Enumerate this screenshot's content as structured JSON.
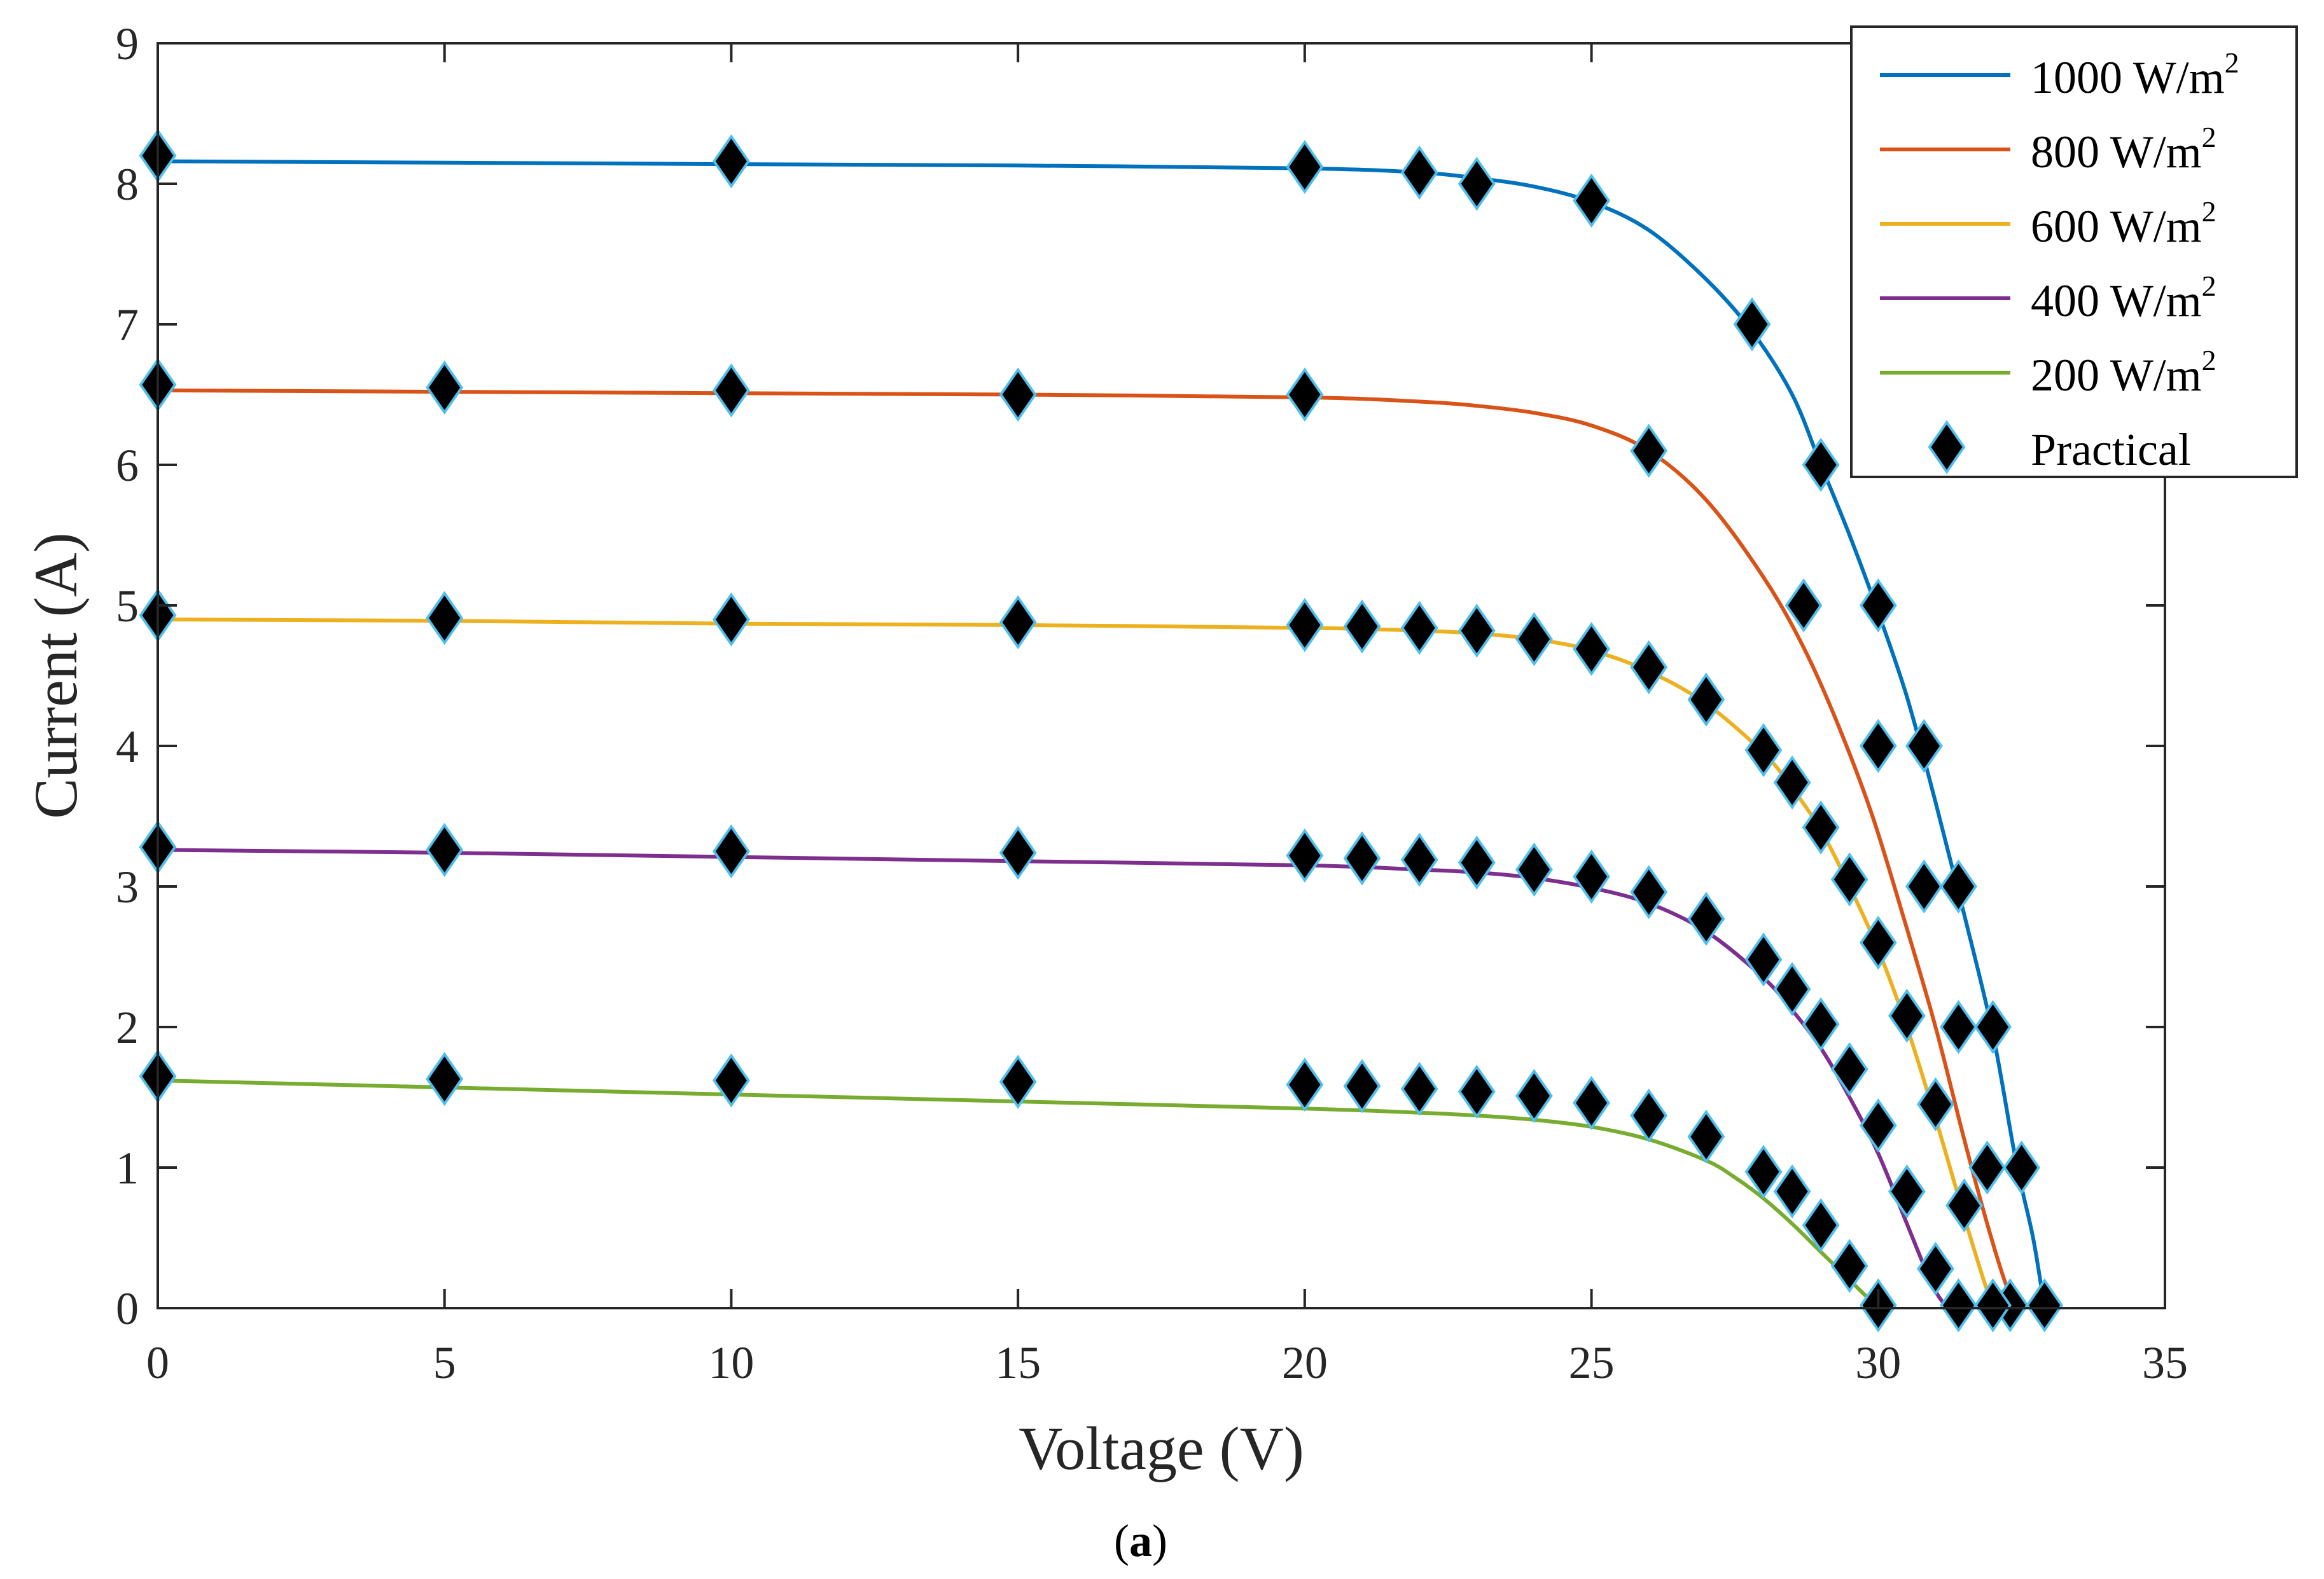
{
  "chart_data": {
    "type": "line",
    "title": "",
    "xlabel": "Voltage (V)",
    "ylabel": "Current (A)",
    "xlim": [
      0,
      35
    ],
    "ylim": [
      0,
      9
    ],
    "xticks": [
      "0",
      "5",
      "10",
      "15",
      "20",
      "25",
      "30",
      "35"
    ],
    "yticks": [
      "0",
      "1",
      "2",
      "3",
      "4",
      "5",
      "6",
      "7",
      "8",
      "9"
    ],
    "grid": false,
    "legend_position": "top-right",
    "caption": {
      "open": "(",
      "letter": "a",
      "close": ")"
    },
    "series": [
      {
        "name": "1000 W/m2",
        "label_text": "1000 W/m",
        "label_sup": "2",
        "color": "#0072BD",
        "x": [
          0,
          5,
          10,
          15,
          20,
          22,
          23,
          24,
          25,
          26,
          27,
          27.8,
          28.5,
          29,
          29.5,
          30,
          30.5,
          31,
          31.5,
          32,
          32.4,
          32.7,
          32.9
        ],
        "y": [
          8.16,
          8.15,
          8.14,
          8.13,
          8.11,
          8.08,
          8.04,
          7.98,
          7.87,
          7.67,
          7.32,
          6.95,
          6.5,
          6.0,
          5.5,
          4.95,
          4.35,
          3.6,
          2.8,
          1.95,
          1.05,
          0.5,
          0.0
        ]
      },
      {
        "name": "800 W/m2",
        "label_text": "800 W/m",
        "label_sup": "2",
        "color": "#D95319",
        "x": [
          0,
          5,
          10,
          15,
          20,
          22,
          23,
          24,
          25,
          26,
          27,
          28,
          28.7,
          29.3,
          29.9,
          30.5,
          31,
          31.5,
          31.9,
          32.2,
          32.4
        ],
        "y": [
          6.53,
          6.52,
          6.51,
          6.5,
          6.48,
          6.45,
          6.42,
          6.37,
          6.28,
          6.1,
          5.75,
          5.2,
          4.7,
          4.15,
          3.5,
          2.7,
          2.0,
          1.2,
          0.6,
          0.2,
          0.0
        ]
      },
      {
        "name": "600 W/m2",
        "label_text": "600 W/m",
        "label_sup": "2",
        "color": "#EDB120",
        "x": [
          0,
          5,
          10,
          15,
          20,
          22,
          23,
          24,
          25,
          26,
          27,
          28,
          28.5,
          29,
          29.5,
          30,
          30.5,
          31,
          31.5,
          31.8,
          32
        ],
        "y": [
          4.9,
          4.89,
          4.87,
          4.86,
          4.84,
          4.82,
          4.8,
          4.76,
          4.68,
          4.53,
          4.3,
          3.95,
          3.7,
          3.4,
          3.0,
          2.55,
          2.0,
          1.35,
          0.65,
          0.25,
          0.0
        ]
      },
      {
        "name": "400 W/m2",
        "label_text": "400 W/m",
        "label_sup": "2",
        "color": "#7E2F8E",
        "x": [
          0,
          5,
          10,
          15,
          20,
          22,
          23,
          24,
          25,
          26,
          27,
          28,
          28.5,
          29,
          29.5,
          30,
          30.5,
          30.8,
          31,
          31.2
        ],
        "y": [
          3.26,
          3.24,
          3.21,
          3.18,
          3.15,
          3.12,
          3.1,
          3.06,
          2.99,
          2.88,
          2.68,
          2.35,
          2.12,
          1.85,
          1.5,
          1.1,
          0.6,
          0.3,
          0.12,
          0.0
        ]
      },
      {
        "name": "200 W/m2",
        "label_text": "200 W/m",
        "label_sup": "2",
        "color": "#77AC30",
        "x": [
          0,
          5,
          10,
          15,
          20,
          22,
          23,
          24,
          25,
          26,
          27,
          27.5,
          28,
          28.5,
          29,
          29.5,
          29.8,
          30
        ],
        "y": [
          1.62,
          1.57,
          1.52,
          1.47,
          1.42,
          1.39,
          1.37,
          1.34,
          1.29,
          1.2,
          1.05,
          0.93,
          0.78,
          0.6,
          0.4,
          0.2,
          0.08,
          0.0
        ]
      },
      {
        "name": "Practical",
        "label_text": "Practical",
        "label_sup": "",
        "marker": "diamond",
        "color": "#000000",
        "edge_color": "#4DBEEE",
        "x": [
          0,
          10,
          20,
          22,
          23,
          25,
          27.8,
          29,
          30,
          30.8,
          31.4,
          32,
          32.5,
          32.9,
          0,
          5,
          10,
          15,
          20,
          26,
          28.7,
          30,
          30.8,
          31.4,
          31.9,
          32.3,
          0,
          5,
          10,
          15,
          20,
          21,
          22,
          23,
          24,
          25,
          26,
          27,
          28,
          28.5,
          29,
          29.5,
          30,
          30.5,
          31,
          31.5,
          32,
          0,
          5,
          10,
          15,
          20,
          21,
          22,
          23,
          24,
          25,
          26,
          27,
          28,
          28.5,
          29,
          29.5,
          30,
          30.5,
          31,
          31.4,
          0,
          5,
          10,
          15,
          20,
          21,
          22,
          23,
          24,
          25,
          26,
          27,
          28,
          28.5,
          29,
          29.5,
          30
        ],
        "y": [
          8.2,
          8.16,
          8.12,
          8.08,
          8.0,
          7.88,
          7.0,
          6.0,
          5.0,
          4.0,
          3.0,
          2.0,
          1.0,
          0.02,
          6.57,
          6.55,
          6.53,
          6.5,
          6.5,
          6.1,
          5.0,
          4.0,
          3.0,
          2.0,
          1.0,
          0.02,
          4.93,
          4.91,
          4.9,
          4.88,
          4.86,
          4.85,
          4.84,
          4.82,
          4.76,
          4.69,
          4.56,
          4.33,
          3.97,
          3.74,
          3.42,
          3.05,
          2.6,
          2.08,
          1.45,
          0.73,
          0.02,
          3.28,
          3.26,
          3.25,
          3.24,
          3.22,
          3.2,
          3.19,
          3.17,
          3.12,
          3.07,
          2.96,
          2.77,
          2.48,
          2.27,
          2.02,
          1.7,
          1.3,
          0.83,
          0.28,
          0.02,
          1.65,
          1.63,
          1.62,
          1.61,
          1.59,
          1.58,
          1.56,
          1.54,
          1.51,
          1.46,
          1.37,
          1.22,
          0.97,
          0.83,
          0.59,
          0.3,
          0.02
        ]
      }
    ]
  }
}
